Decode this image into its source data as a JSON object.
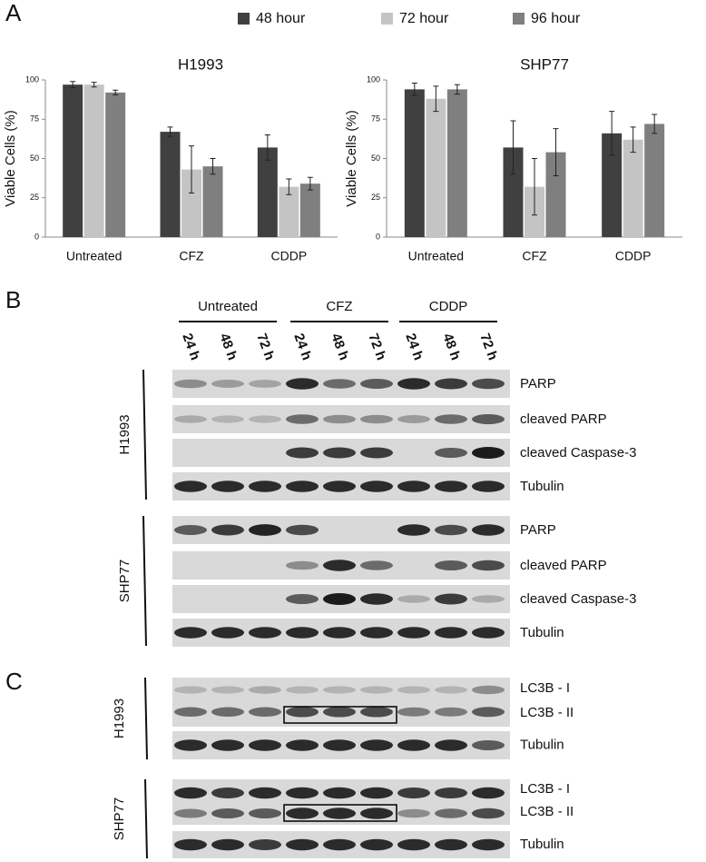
{
  "panel_labels": [
    "A",
    "B",
    "C"
  ],
  "chart_data": [
    {
      "type": "bar",
      "title": "H1993",
      "y_label": "Viable Cells (%)",
      "categories": [
        "Untreated",
        "CFZ",
        "CDDP"
      ],
      "series": [
        {
          "name": "48 hour",
          "color": "#404040",
          "values": [
            97,
            67,
            57
          ],
          "errors": [
            2,
            3,
            8
          ]
        },
        {
          "name": "72 hour",
          "color": "#c4c4c4",
          "values": [
            97,
            43,
            32
          ],
          "errors": [
            1.5,
            15,
            5
          ]
        },
        {
          "name": "96 hour",
          "color": "#7f7f7f",
          "values": [
            92,
            45,
            34
          ],
          "errors": [
            1.5,
            5,
            4
          ]
        }
      ],
      "ylim": [
        0,
        100
      ],
      "yticks": [
        0,
        25,
        50,
        75,
        100
      ],
      "grid": false
    },
    {
      "type": "bar",
      "title": "SHP77",
      "y_label": "Viable Cells (%)",
      "categories": [
        "Untreated",
        "CFZ",
        "CDDP"
      ],
      "series": [
        {
          "color": "#404040",
          "values": [
            94,
            57,
            66
          ],
          "errors": [
            4,
            17,
            14
          ]
        },
        {
          "color": "#c4c4c4",
          "values": [
            88,
            32,
            62
          ],
          "errors": [
            8,
            18,
            8
          ]
        },
        {
          "color": "#7f7f7f",
          "values": [
            94,
            54,
            72
          ],
          "errors": [
            3,
            15,
            6
          ]
        }
      ],
      "ylim": [
        0,
        100
      ],
      "yticks": [
        0,
        25,
        50,
        75,
        100
      ],
      "grid": false
    }
  ],
  "blot_b": {
    "groups": [
      "Untreated",
      "CFZ",
      "CDDP"
    ],
    "times": [
      "24 h",
      "48 h",
      "72 h"
    ],
    "cell_lines": [
      {
        "name": "H1993",
        "bands": [
          "PARP",
          "cleaved PARP",
          "cleaved Caspase-3",
          "Tubulin"
        ]
      },
      {
        "name": "SHP77",
        "bands": [
          "PARP",
          "cleaved PARP",
          "cleaved Caspase-3",
          "Tubulin"
        ]
      }
    ]
  },
  "blot_c": {
    "cell_lines": [
      {
        "name": "H1993",
        "strips": [
          [
            "LC3B - I",
            "LC3B - II"
          ],
          [
            "Tubulin"
          ]
        ]
      },
      {
        "name": "SHP77",
        "strips": [
          [
            "LC3B - I",
            "LC3B - II"
          ],
          [
            "Tubulin"
          ]
        ]
      }
    ]
  }
}
